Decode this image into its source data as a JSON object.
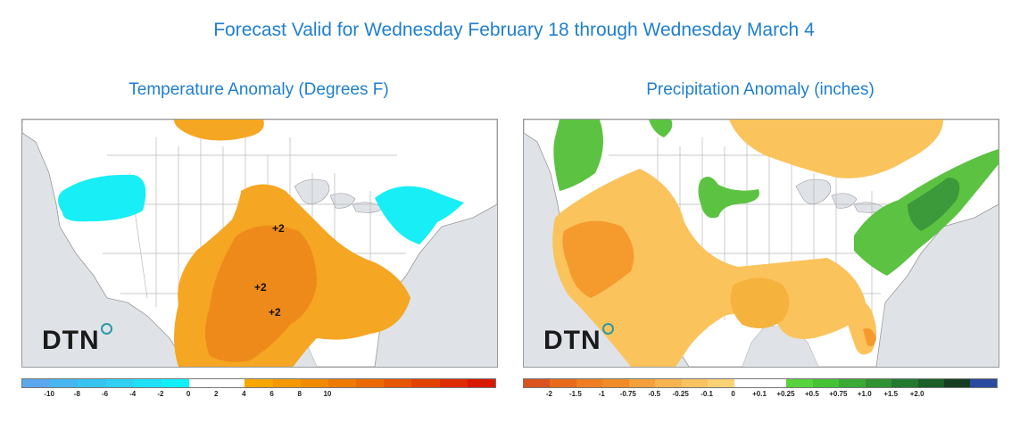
{
  "header": {
    "title": "Forecast Valid for Wednesday February 18 through Wednesday March 4"
  },
  "temperature": {
    "title": "Temperature Anomaly (Degrees F)",
    "labels": [
      "+2",
      "+2",
      "+2"
    ],
    "logo": "DTN",
    "legend": {
      "colors": [
        "#5ba8ee",
        "#46b6f0",
        "#38c4f2",
        "#2ed0f4",
        "#1fe0f8",
        "#10f0fb",
        "#ffffff",
        "#ffffff",
        "#f8a600",
        "#f69800",
        "#f28a00",
        "#ee7a00",
        "#ea6a00",
        "#e65600",
        "#e24200",
        "#de2c00",
        "#d81800"
      ],
      "ticks": [
        "-10",
        "-8",
        "-6",
        "-4",
        "-2",
        "0",
        "2",
        "4",
        "6",
        "8",
        "10"
      ]
    }
  },
  "precipitation": {
    "title": "Precipitation Anomaly (inches)",
    "logo": "DTN",
    "legend": {
      "colors": [
        "#d9531e",
        "#e86a1c",
        "#ef7e22",
        "#f28c26",
        "#f5a03a",
        "#f7b44f",
        "#f9c460",
        "#fbd274",
        "#ffffff",
        "#ffffff",
        "#56d43e",
        "#46c234",
        "#3aaa34",
        "#2e9232",
        "#227a2e",
        "#1a5e28",
        "#163d1f",
        "#2a4aa0"
      ],
      "ticks": [
        "-2",
        "-1.5",
        "-1",
        "-0.75",
        "-0.5",
        "-0.25",
        "-0.1",
        "0",
        "+0.1",
        "+0.25",
        "+0.5",
        "+0.75",
        "+1.0",
        "+1.5",
        "+2.0"
      ]
    }
  },
  "colors": {
    "title_blue": "#1f7fd0",
    "land": "#ffffff",
    "water": "#dfe3e8",
    "warm": "#f5a623",
    "warm_dark": "#ee8a1a",
    "cold": "#17eef5",
    "dry": "#fbc35c",
    "dry_dark": "#f59a2c",
    "wet": "#5cc342",
    "wet_dark": "#3d9a3a"
  }
}
